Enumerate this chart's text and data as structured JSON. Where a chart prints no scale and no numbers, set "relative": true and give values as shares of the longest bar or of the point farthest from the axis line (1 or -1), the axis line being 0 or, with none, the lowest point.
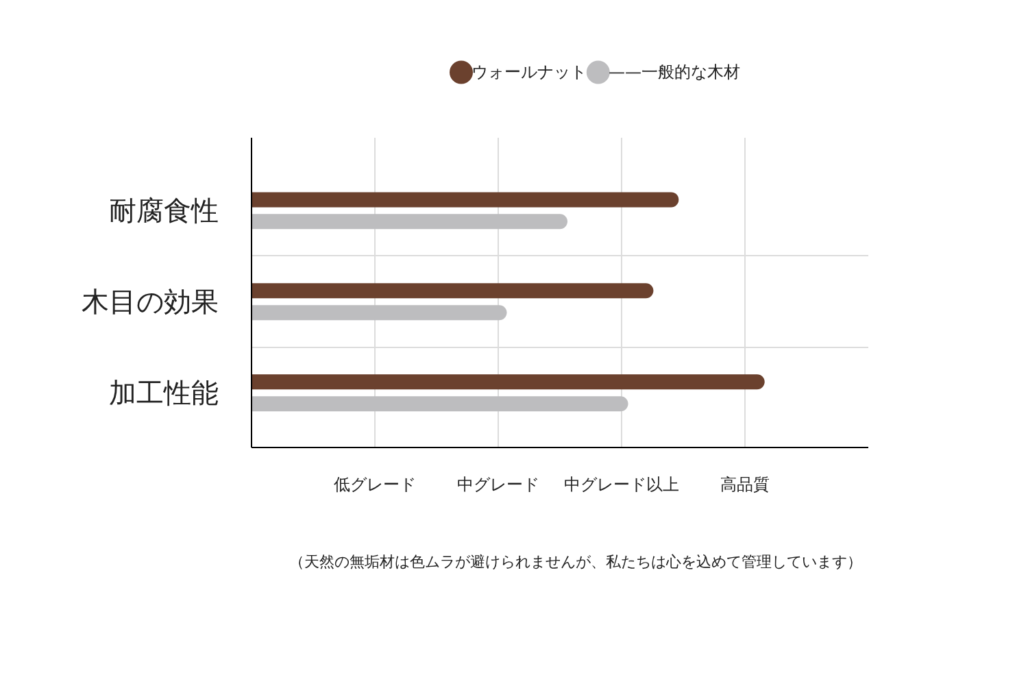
{
  "chart_data": {
    "type": "bar",
    "orientation": "horizontal",
    "relative": true,
    "categories": [
      "耐腐食性",
      "木目の効果",
      "加工性能"
    ],
    "series": [
      {
        "name": "ウォールナット",
        "color": "#6b412e",
        "values": [
          0.83,
          0.78,
          1.0
        ]
      },
      {
        "name": "——一般的な木材",
        "color": "#bdbdbf",
        "values": [
          0.61,
          0.49,
          0.73
        ]
      }
    ],
    "grid": true,
    "legend": "top",
    "marker": "circle",
    "annotations": [
      "低グレード",
      "中グレード",
      "中グレード以上",
      "高品質",
      "（天然の無垢材は色ムラが避けられませんが、私たちは心を込めて管理しています）"
    ]
  }
}
